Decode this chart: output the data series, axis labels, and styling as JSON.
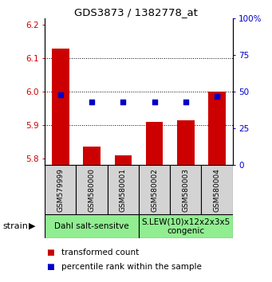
{
  "title": "GDS3873 / 1382778_at",
  "samples": [
    "GSM579999",
    "GSM580000",
    "GSM580001",
    "GSM580002",
    "GSM580003",
    "GSM580004"
  ],
  "red_values": [
    6.13,
    5.835,
    5.81,
    5.91,
    5.915,
    6.0
  ],
  "blue_pct": [
    48,
    43,
    43,
    43,
    43,
    47
  ],
  "ylim_left": [
    5.78,
    6.22
  ],
  "ylim_right": [
    0,
    100
  ],
  "yticks_left": [
    5.8,
    5.9,
    6.0,
    6.1,
    6.2
  ],
  "yticks_right": [
    0,
    25,
    50,
    75,
    100
  ],
  "red_color": "#cc0000",
  "blue_color": "#0000cc",
  "bar_bottom": 5.78,
  "bar_width": 0.55,
  "groups": [
    {
      "label": "Dahl salt-sensitve",
      "start": 0,
      "end": 3,
      "color": "#90ee90"
    },
    {
      "label": "S.LEW(10)x12x2x3x5\ncongenic",
      "start": 3,
      "end": 6,
      "color": "#90ee90"
    }
  ],
  "strain_label": "strain",
  "legend_red": "transformed count",
  "legend_blue": "percentile rank within the sample",
  "grid_lines": [
    5.9,
    6.0,
    6.1
  ],
  "xlabel_color_left": "#cc0000",
  "xlabel_color_right": "#0000cc",
  "sample_box_color": "#d3d3d3",
  "title_fontsize": 9.5,
  "tick_fontsize": 7.5,
  "sample_fontsize": 6.5,
  "group_fontsize": 7.5,
  "legend_fontsize": 7.5
}
